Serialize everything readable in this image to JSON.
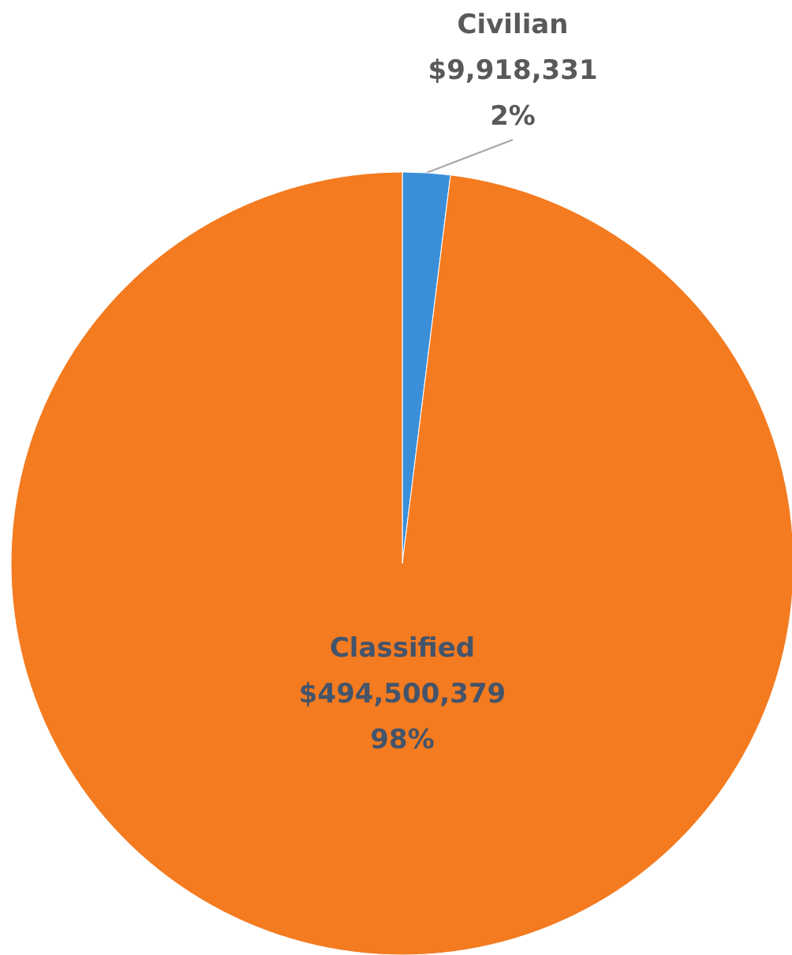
{
  "chart_data": {
    "type": "pie",
    "categories": [
      "Civilian",
      "Classified"
    ],
    "values": [
      9918331,
      494500379
    ],
    "colors": [
      "#3b8fd9",
      "#f47b20"
    ],
    "value_labels": [
      "$9,918,331\n2%",
      "$494,500,379\n98%"
    ]
  }
}
